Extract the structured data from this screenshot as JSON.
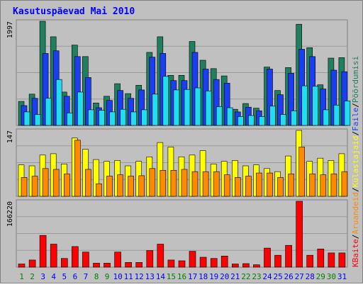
{
  "chart_data": {
    "type": "bar",
    "title": "Kasutuspäevad Mai 2010",
    "categories": [
      "1",
      "2",
      "3",
      "4",
      "5",
      "6",
      "7",
      "8",
      "9",
      "10",
      "11",
      "12",
      "13",
      "14",
      "15",
      "16",
      "17",
      "18",
      "19",
      "20",
      "21",
      "22",
      "23",
      "24",
      "25",
      "26",
      "27",
      "28",
      "29",
      "30",
      "31"
    ],
    "weekend_days": [
      1,
      2,
      8,
      9,
      15,
      16,
      22,
      23,
      29,
      30
    ],
    "panels": [
      {
        "id": "upper",
        "max_label": "1997",
        "ylim": [
          0,
          1997
        ],
        "series": [
          {
            "name": "Pöördumisi",
            "color": "#1f7f5f",
            "values": [
              460,
              600,
              1997,
              1700,
              640,
              1540,
              1320,
              430,
              560,
              800,
              610,
              770,
              1400,
              1700,
              960,
              960,
              1610,
              1250,
              1090,
              950,
              310,
              420,
              330,
              1120,
              670,
              1110,
              1940,
              1490,
              780,
              1290,
              1300
            ]
          },
          {
            "name": "Faile",
            "color": "#1a3ef0",
            "values": [
              380,
              520,
              1380,
              1430,
              560,
              1320,
              920,
              340,
              480,
              670,
              520,
              680,
              1310,
              1380,
              860,
              860,
              1400,
              1080,
              880,
              810,
              260,
              350,
              280,
              1080,
              590,
              1000,
              1460,
              1320,
              700,
              1060,
              1030
            ]
          },
          {
            "name": "Külastajaid",
            "color": "#22dcf0",
            "values": [
              260,
              210,
              520,
              880,
              240,
              640,
              300,
              290,
              260,
              310,
              260,
              300,
              600,
              940,
              680,
              690,
              720,
              660,
              360,
              340,
              170,
              190,
              170,
              370,
              210,
              280,
              760,
              750,
              300,
              390,
              470
            ]
          }
        ]
      },
      {
        "id": "middle",
        "max_label": "147",
        "ylim": [
          0,
          147
        ],
        "series": [
          {
            "name": "Külastajaid",
            "color": "#ffff00",
            "values": [
              70,
              68,
              92,
              95,
              72,
              130,
              105,
              82,
              78,
              80,
              68,
              78,
              88,
              120,
              110,
              88,
              92,
              102,
              72,
              78,
              80,
              68,
              70,
              62,
              55,
              90,
              147,
              78,
              85,
              80,
              95
            ]
          },
          {
            "name": "Aruandeid",
            "color": "#ff8a00",
            "values": [
              42,
              45,
              62,
              60,
              50,
              125,
              60,
              28,
              45,
              48,
              45,
              46,
              62,
              58,
              58,
              60,
              55,
              55,
              55,
              48,
              42,
              45,
              52,
              52,
              42,
              50,
              110,
              50,
              48,
              50,
              55
            ]
          }
        ]
      },
      {
        "id": "lower",
        "max_label": "166220",
        "ylim": [
          0,
          166220
        ],
        "series": [
          {
            "name": "KBaite",
            "color": "#ff0000",
            "values": [
              8000,
              18000,
              80000,
              58000,
              22000,
              52000,
              38000,
              10000,
              10000,
              38000,
              12000,
              12000,
              42000,
              58000,
              18000,
              16000,
              40000,
              25000,
              22000,
              28000,
              8000,
              9000,
              6000,
              48000,
              30000,
              55000,
              166220,
              30000,
              46000,
              36000,
              36000
            ]
          }
        ]
      }
    ],
    "legend_right": [
      {
        "text": "KBaite",
        "color": "#ff0000"
      },
      {
        "text": "Aruandeid",
        "color": "#ff8a00"
      },
      {
        "text": "Külastajaid",
        "color": "#ffff00"
      },
      {
        "text": "Faile",
        "color": "#1a3ef0"
      },
      {
        "text": "Pöördumisi",
        "color": "#1f7f5f"
      }
    ],
    "legend_separator": "/",
    "colors": {
      "background": "#c0c0c0",
      "panel_border": "#808080",
      "gridline": "#9a9a9a",
      "title": "#0000ff",
      "weekday_label": "#0000ff",
      "weekend_label": "#008000"
    }
  }
}
